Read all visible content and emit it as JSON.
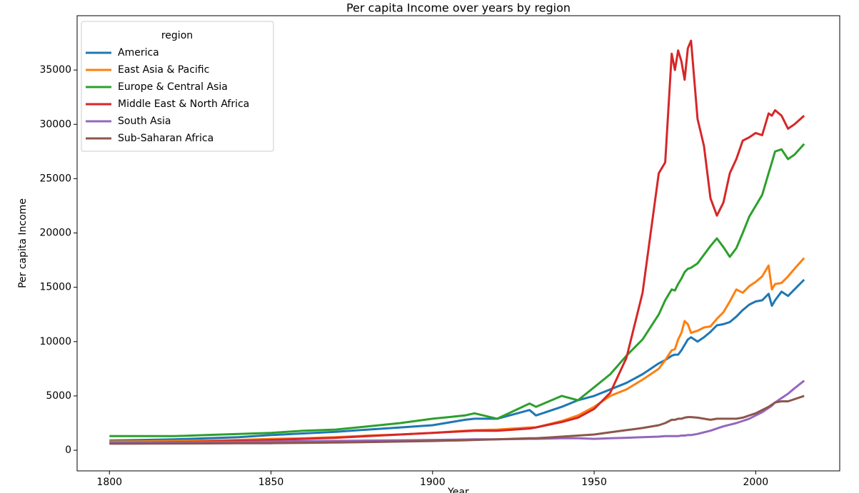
{
  "chart_data": {
    "type": "line",
    "title": "Per capita Income over years by region",
    "x_label": "Year",
    "y_label": "Per capita Income",
    "legend_title": "region",
    "legend_position": "upper left",
    "x": [
      1800,
      1810,
      1820,
      1830,
      1840,
      1850,
      1860,
      1870,
      1880,
      1890,
      1900,
      1910,
      1913,
      1920,
      1930,
      1932,
      1940,
      1945,
      1950,
      1955,
      1960,
      1965,
      1970,
      1972,
      1974,
      1975,
      1976,
      1977,
      1978,
      1979,
      1980,
      1982,
      1984,
      1986,
      1988,
      1990,
      1992,
      1994,
      1996,
      1998,
      2000,
      2002,
      2004,
      2005,
      2006,
      2008,
      2010,
      2012,
      2015
    ],
    "series": [
      {
        "name": "America",
        "color": "#1f77b4",
        "values": [
          900,
          950,
          1000,
          1100,
          1200,
          1400,
          1550,
          1700,
          1900,
          2100,
          2300,
          2800,
          2900,
          2900,
          3700,
          3200,
          4000,
          4600,
          5000,
          5600,
          6200,
          7000,
          8000,
          8300,
          8700,
          8800,
          8800,
          9200,
          9700,
          10200,
          10400,
          10000,
          10400,
          10900,
          11500,
          11600,
          11800,
          12300,
          12900,
          13400,
          13700,
          13800,
          14400,
          13300,
          13800,
          14600,
          14200,
          14800,
          15700
        ]
      },
      {
        "name": "East Asia & Pacific",
        "color": "#ff7f0e",
        "values": [
          800,
          820,
          850,
          900,
          950,
          1050,
          1100,
          1200,
          1350,
          1450,
          1600,
          1800,
          1850,
          1900,
          2100,
          2100,
          2700,
          3200,
          4000,
          5000,
          5600,
          6500,
          7500,
          8300,
          9200,
          9300,
          10200,
          10800,
          11900,
          11600,
          10800,
          11000,
          11300,
          11400,
          12100,
          12700,
          13700,
          14800,
          14500,
          15100,
          15500,
          16000,
          17000,
          14800,
          15300,
          15400,
          16000,
          16700,
          17700
        ]
      },
      {
        "name": "Europe & Central Asia",
        "color": "#2ca02c",
        "values": [
          1300,
          1300,
          1300,
          1400,
          1500,
          1600,
          1800,
          1900,
          2200,
          2500,
          2900,
          3200,
          3400,
          2900,
          4300,
          4000,
          5000,
          4600,
          5800,
          7000,
          8700,
          10200,
          12500,
          13800,
          14800,
          14700,
          15300,
          15800,
          16400,
          16700,
          16800,
          17200,
          18000,
          18800,
          19500,
          18700,
          17800,
          18600,
          20000,
          21500,
          22500,
          23500,
          25500,
          26500,
          27500,
          27700,
          26800,
          27200,
          28200
        ]
      },
      {
        "name": "Middle East & North Africa",
        "color": "#d62728",
        "values": [
          700,
          720,
          750,
          800,
          870,
          950,
          1050,
          1150,
          1300,
          1450,
          1600,
          1750,
          1800,
          1800,
          2000,
          2100,
          2600,
          3000,
          3800,
          5300,
          8500,
          14500,
          25500,
          26500,
          36500,
          35000,
          36800,
          35800,
          34100,
          37000,
          37700,
          30500,
          28000,
          23200,
          21600,
          22800,
          25500,
          26800,
          28500,
          28800,
          29200,
          29000,
          31000,
          30800,
          31300,
          30800,
          29600,
          30000,
          30800
        ]
      },
      {
        "name": "South Asia",
        "color": "#9467bd",
        "values": [
          700,
          710,
          720,
          740,
          760,
          800,
          830,
          860,
          890,
          920,
          950,
          990,
          1000,
          1000,
          1050,
          1050,
          1100,
          1100,
          1050,
          1100,
          1150,
          1200,
          1250,
          1300,
          1300,
          1300,
          1300,
          1350,
          1350,
          1400,
          1400,
          1500,
          1650,
          1800,
          2000,
          2200,
          2350,
          2500,
          2700,
          2900,
          3200,
          3500,
          3900,
          4100,
          4400,
          4800,
          5200,
          5700,
          6400
        ]
      },
      {
        "name": "Sub-Saharan Africa",
        "color": "#8c564b",
        "values": [
          600,
          610,
          620,
          630,
          640,
          650,
          680,
          710,
          750,
          800,
          850,
          920,
          950,
          1000,
          1100,
          1100,
          1250,
          1350,
          1450,
          1650,
          1850,
          2050,
          2300,
          2500,
          2800,
          2800,
          2900,
          2900,
          3000,
          3050,
          3050,
          3000,
          2900,
          2800,
          2900,
          2900,
          2900,
          2900,
          3000,
          3200,
          3400,
          3700,
          4000,
          4200,
          4400,
          4500,
          4500,
          4700,
          5000
        ]
      }
    ],
    "xlim": [
      1790,
      2026
    ],
    "xticks": [
      1800,
      1850,
      1900,
      1950,
      2000
    ],
    "ylim": [
      -1900,
      40000
    ],
    "yticks": [
      0,
      5000,
      10000,
      15000,
      20000,
      25000,
      30000,
      35000
    ]
  }
}
